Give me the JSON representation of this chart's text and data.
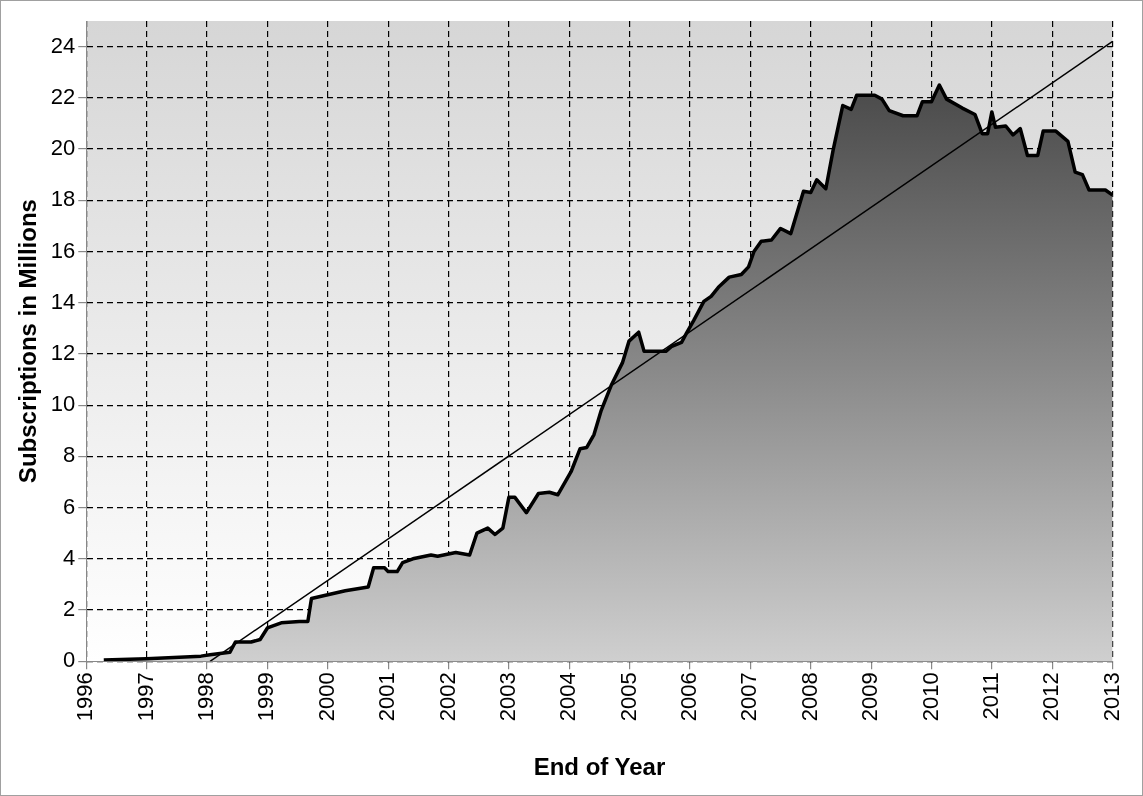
{
  "chart_data": {
    "type": "area",
    "xlabel": "End of Year",
    "ylabel": "Subscriptions in Millions",
    "xlim": [
      1996,
      2013
    ],
    "xticks": [
      1996,
      1997,
      1998,
      1999,
      2000,
      2001,
      2002,
      2003,
      2004,
      2005,
      2006,
      2007,
      2008,
      2009,
      2010,
      2011,
      2012,
      2013
    ],
    "ylim": [
      0,
      25
    ],
    "yticks": [
      0,
      2,
      4,
      6,
      8,
      10,
      12,
      14,
      16,
      18,
      20,
      22,
      24
    ],
    "grid": true,
    "legend": false,
    "marker": "none",
    "line_style": "solid",
    "series": [
      {
        "type": "area",
        "color": "#000000",
        "x": [
          1996.29,
          1997.0,
          1997.9,
          1998.05,
          1998.38,
          1998.47,
          1998.73,
          1998.88,
          1999.0,
          1999.23,
          1999.53,
          1999.67,
          1999.73,
          2000.0,
          2000.29,
          2000.67,
          2000.76,
          2000.94,
          2001.0,
          2001.15,
          2001.24,
          2001.41,
          2001.71,
          2001.82,
          2002.12,
          2002.35,
          2002.47,
          2002.65,
          2002.77,
          2002.9,
          2003.0,
          2003.1,
          2003.29,
          2003.49,
          2003.67,
          2003.81,
          2004.03,
          2004.18,
          2004.29,
          2004.41,
          2004.53,
          2004.7,
          2004.88,
          2004.99,
          2005.15,
          2005.24,
          2005.35,
          2005.6,
          2005.7,
          2005.86,
          2005.94,
          2006.06,
          2006.23,
          2006.35,
          2006.47,
          2006.65,
          2006.85,
          2006.97,
          2007.06,
          2007.18,
          2007.35,
          2007.5,
          2007.67,
          2007.88,
          2008.0,
          2008.1,
          2008.25,
          2008.37,
          2008.53,
          2008.67,
          2008.76,
          2009.06,
          2009.18,
          2009.3,
          2009.53,
          2009.76,
          2009.85,
          2010.0,
          2010.13,
          2010.25,
          2010.51,
          2010.72,
          2010.84,
          2010.93,
          2011.0,
          2011.06,
          2011.23,
          2011.35,
          2011.47,
          2011.59,
          2011.76,
          2011.85,
          2012.06,
          2012.26,
          2012.38,
          2012.5,
          2012.61,
          2012.88,
          2013.0
        ],
        "values": [
          0.05,
          0.1,
          0.2,
          0.25,
          0.35,
          0.75,
          0.75,
          0.85,
          1.3,
          1.5,
          1.55,
          1.55,
          2.45,
          2.6,
          2.75,
          2.9,
          3.65,
          3.65,
          3.5,
          3.5,
          3.85,
          4.0,
          4.15,
          4.1,
          4.25,
          4.15,
          5.0,
          5.2,
          4.95,
          5.2,
          6.4,
          6.4,
          5.8,
          6.55,
          6.6,
          6.5,
          7.4,
          8.3,
          8.35,
          8.85,
          9.8,
          10.8,
          11.65,
          12.5,
          12.85,
          12.1,
          12.1,
          12.1,
          12.3,
          12.45,
          12.8,
          13.3,
          14.05,
          14.25,
          14.6,
          15.0,
          15.1,
          15.4,
          16.0,
          16.4,
          16.45,
          16.9,
          16.7,
          18.35,
          18.3,
          18.8,
          18.45,
          19.95,
          21.7,
          21.55,
          22.1,
          22.1,
          21.95,
          21.5,
          21.3,
          21.3,
          21.85,
          21.85,
          22.5,
          21.95,
          21.6,
          21.35,
          20.6,
          20.6,
          21.45,
          20.85,
          20.9,
          20.55,
          20.8,
          19.75,
          19.75,
          20.7,
          20.7,
          20.3,
          19.1,
          19.0,
          18.4,
          18.4,
          18.2
        ]
      },
      {
        "type": "line",
        "color": "#000000",
        "x": [
          1998.05,
          2013.0
        ],
        "values": [
          0,
          24.2
        ]
      }
    ]
  }
}
